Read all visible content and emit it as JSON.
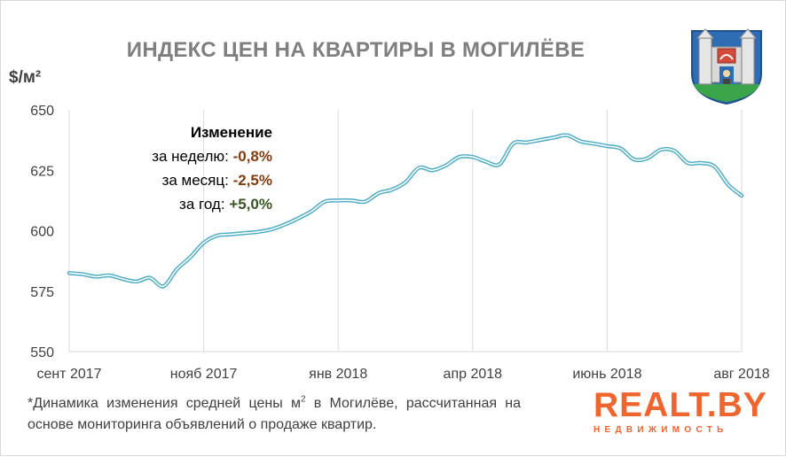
{
  "title": "ИНДЕКС ЦЕН НА КВАРТИРЫ В МОГИЛЁВЕ",
  "unit_label": "$/м²",
  "changes": {
    "header": "Изменение",
    "rows": [
      {
        "label": "за неделю:",
        "value": "-0,8%"
      },
      {
        "label": "за месяц:",
        "value": "-2,5%"
      },
      {
        "label": "за год:",
        "value": "+5,0%"
      }
    ]
  },
  "footnote": {
    "text_before": "*Динамика изменения средней цены м",
    "superscript": "2",
    "text_after": " в Могилёве, рассчитанная на основе мониторинга объявлений о продаже квартир."
  },
  "brand": {
    "name": "REALT.BY",
    "tagline": "НЕДВИЖИМОСТЬ"
  },
  "colors": {
    "line": "#4bacc6",
    "title": "#7f7f7f",
    "negative": "#843c0c",
    "positive": "#375623",
    "brand": "#f0642d"
  },
  "chart_data": {
    "type": "line",
    "title": "ИНДЕКС ЦЕН НА КВАРТИРЫ В МОГИЛЁВЕ",
    "ylabel": "$/м²",
    "xlabel": "",
    "ylim": [
      550,
      650
    ],
    "yticks": [
      550,
      575,
      600,
      625,
      650
    ],
    "grid": "vertical",
    "x_tick_labels": [
      "сент 2017",
      "нояб 2017",
      "янв 2018",
      "апр 2018",
      "июнь 2018",
      "авг 2018"
    ],
    "x_tick_weeks": [
      0,
      10,
      20,
      30,
      40,
      50
    ],
    "series": [
      {
        "values": [
          582.5,
          582,
          581,
          581.5,
          580,
          579,
          580.5,
          577,
          584,
          589,
          595,
          598,
          598.5,
          599,
          599.5,
          600.5,
          602.5,
          605,
          608,
          612,
          612.5,
          612.5,
          612,
          615.5,
          617,
          620,
          626,
          625,
          627,
          630.5,
          630.5,
          628.5,
          627.5,
          636,
          636.5,
          637.5,
          638.5,
          639.5,
          637,
          636,
          635,
          634,
          629.5,
          630,
          633.5,
          633,
          628,
          628,
          626.5,
          619,
          614.5
        ]
      }
    ]
  }
}
